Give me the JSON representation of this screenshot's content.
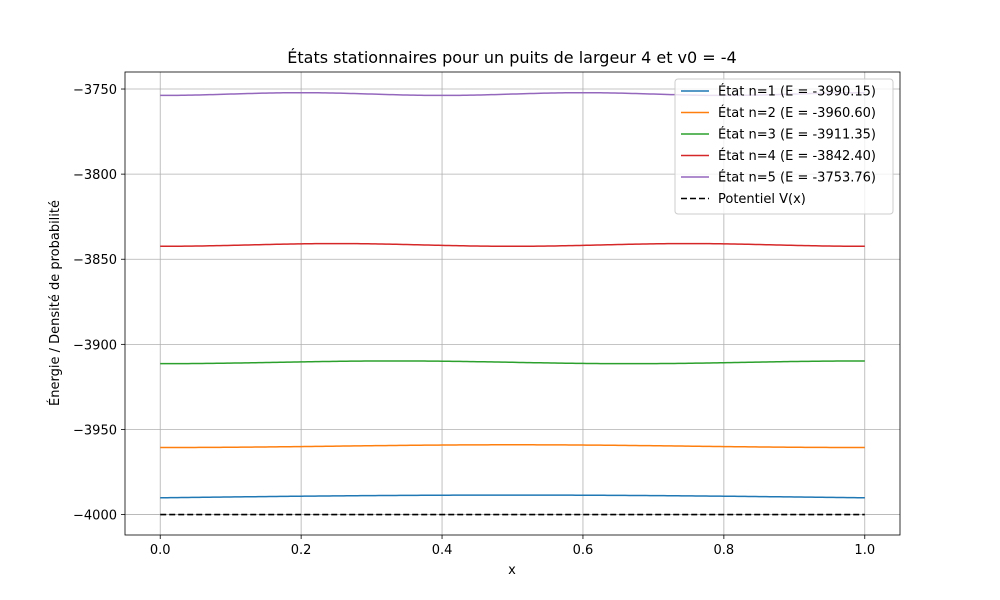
{
  "chart_data": {
    "type": "line",
    "title": "États stationnaires pour un puits de largeur 4 et v0 = -4",
    "xlabel": "x",
    "ylabel": "Énergie / Densité de probabilité",
    "xlim": [
      -0.05,
      1.05
    ],
    "ylim": [
      -4012,
      -3740
    ],
    "xticks": [
      0.0,
      0.2,
      0.4,
      0.6,
      0.8,
      1.0
    ],
    "xtick_labels": [
      "0.0",
      "0.2",
      "0.4",
      "0.6",
      "0.8",
      "1.0"
    ],
    "yticks": [
      -4000,
      -3950,
      -3900,
      -3850,
      -3800,
      -3750
    ],
    "ytick_labels": [
      "−4000",
      "−3950",
      "−3900",
      "−3850",
      "−3800",
      "−3750"
    ],
    "grid": true,
    "legend_position": "top-right",
    "series": [
      {
        "name": "État n=1 (E = -3990.15)",
        "color": "#1f77b4",
        "style": "solid",
        "energy": -3990.15,
        "mode": 1,
        "amplitude": 1.6
      },
      {
        "name": "État n=2 (E = -3960.60)",
        "color": "#ff7f0e",
        "style": "solid",
        "energy": -3960.6,
        "mode": 2,
        "amplitude": 1.6
      },
      {
        "name": "État n=3 (E = -3911.35)",
        "color": "#2ca02c",
        "style": "solid",
        "energy": -3911.35,
        "mode": 3,
        "amplitude": 1.6
      },
      {
        "name": "État n=4 (E = -3842.40)",
        "color": "#d62728",
        "style": "solid",
        "energy": -3842.4,
        "mode": 4,
        "amplitude": 1.6
      },
      {
        "name": "État n=5 (E = -3753.76)",
        "color": "#9467bd",
        "style": "solid",
        "energy": -3753.76,
        "mode": 5,
        "amplitude": 1.6
      },
      {
        "name": "Potentiel V(x)",
        "color": "#000000",
        "style": "dashed",
        "energy": -4000,
        "mode": 0,
        "amplitude": 0
      }
    ]
  }
}
